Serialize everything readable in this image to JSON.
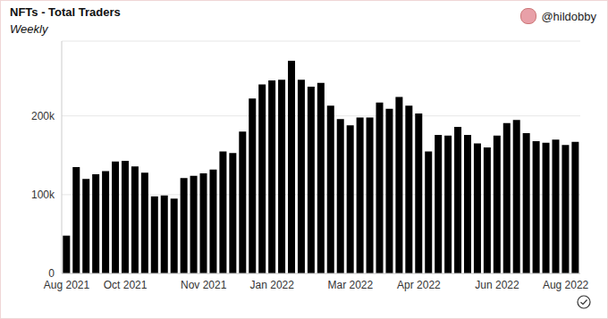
{
  "chart_data": {
    "type": "bar",
    "title": "NFTs - Total Traders",
    "subtitle": "Weekly",
    "annotations": [
      "@hildobby"
    ],
    "categories": [
      "Aug 2021",
      null,
      null,
      null,
      null,
      null,
      "Oct 2021",
      null,
      null,
      null,
      null,
      null,
      null,
      null,
      "Nov 2021",
      null,
      null,
      null,
      null,
      null,
      null,
      "Jan 2022",
      null,
      null,
      null,
      null,
      null,
      null,
      null,
      "Mar 2022",
      null,
      null,
      null,
      null,
      null,
      null,
      "Apr 2022",
      null,
      null,
      null,
      null,
      null,
      null,
      null,
      "Jun 2022",
      null,
      null,
      null,
      null,
      null,
      null,
      "Aug 2022",
      null
    ],
    "values": [
      48000,
      135000,
      120000,
      126000,
      130000,
      142000,
      143000,
      136000,
      128000,
      98000,
      99000,
      95000,
      121000,
      124000,
      127000,
      132000,
      155000,
      153000,
      180000,
      222000,
      240000,
      245000,
      246000,
      270000,
      246000,
      237000,
      242000,
      213000,
      196000,
      188000,
      198000,
      198000,
      217000,
      209000,
      224000,
      213000,
      203000,
      155000,
      176000,
      175000,
      186000,
      176000,
      165000,
      160000,
      175000,
      191000,
      195000,
      178000,
      168000,
      166000,
      170000,
      163000,
      167000
    ],
    "color": "#000000",
    "ylim": [
      0,
      295000
    ],
    "yticks": [
      0,
      {
        "value": 100000,
        "label": "100k"
      },
      {
        "value": 200000,
        "label": "200k"
      }
    ],
    "grid": true
  }
}
